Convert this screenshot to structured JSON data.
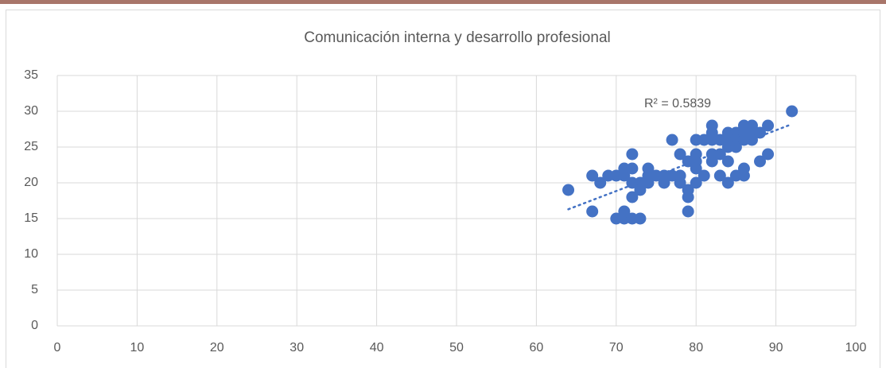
{
  "chart_data": {
    "type": "scatter",
    "title": "Comunicación interna y desarrollo profesional",
    "annotation": "R² = 0.5839",
    "xlim": [
      0,
      100
    ],
    "xticks": [
      0,
      10,
      20,
      30,
      40,
      50,
      60,
      70,
      80,
      90,
      100
    ],
    "ylim": [
      0,
      35
    ],
    "yticks": [
      0,
      5,
      10,
      15,
      20,
      25,
      30,
      35
    ],
    "grid": true,
    "series": [
      {
        "color": "#4472c4",
        "x": [
          64,
          67,
          67,
          68,
          69,
          70,
          70,
          71,
          71,
          71,
          71,
          72,
          72,
          72,
          72,
          72,
          73,
          73,
          73,
          74,
          74,
          74,
          75,
          76,
          76,
          77,
          77,
          78,
          78,
          78,
          79,
          79,
          79,
          79,
          80,
          80,
          80,
          80,
          80,
          81,
          81,
          82,
          82,
          82,
          82,
          82,
          83,
          83,
          83,
          84,
          84,
          84,
          84,
          84,
          85,
          85,
          85,
          85,
          86,
          86,
          86,
          86,
          86,
          87,
          87,
          87,
          88,
          88,
          89,
          89,
          92
        ],
        "values": [
          19,
          21,
          16,
          20,
          21,
          21,
          15,
          22,
          15,
          16,
          21,
          24,
          22,
          20,
          18,
          15,
          15,
          20,
          19,
          22,
          21,
          20,
          21,
          20,
          21,
          26,
          21,
          24,
          21,
          20,
          23,
          19,
          18,
          16,
          26,
          24,
          23,
          22,
          20,
          21,
          26,
          28,
          27,
          26,
          24,
          23,
          26,
          24,
          21,
          27,
          26,
          25,
          23,
          20,
          27,
          26,
          25,
          21,
          28,
          27,
          26,
          22,
          21,
          28,
          27,
          26,
          27,
          23,
          28,
          24,
          30
        ]
      }
    ],
    "trendline": {
      "color": "#4472c4",
      "x": [
        64,
        92
      ],
      "values": [
        16.3,
        28.2
      ]
    }
  }
}
